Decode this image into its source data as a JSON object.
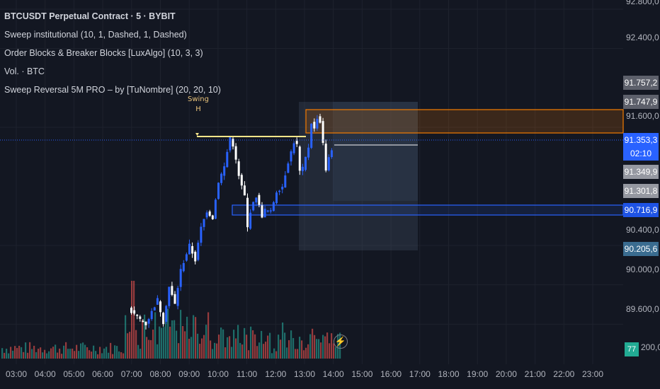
{
  "legend": {
    "title": "BTCUSDT Perpetual Contract · 5 · BYBIT",
    "indicators": [
      "Sweep institutional (10, 1, Dashed, 1, Dashed)",
      "Order Blocks & Breaker Blocks [LuxAlgo] (10, 3, 3)",
      "Vol. · BTC",
      "Sweep Reversal 5M PRO – by [TuNombre] (20, 20, 10)"
    ]
  },
  "swing_label": {
    "line1": "Swing",
    "line2": "H"
  },
  "price_axis": {
    "labels": [
      "92.800,0",
      "92.400,0",
      "91.600,0",
      "90.400,0",
      "90.000,0",
      "89.600,0",
      "200,0"
    ],
    "tags": {
      "ob_upper": "91.757,2",
      "ob_lower": "91.747,9",
      "last_price": "91.353,3",
      "countdown": "02:10",
      "tag_349": "91.349,9",
      "tag_301": "91.301,8",
      "blue_zone": "90.716,9",
      "bottom_tag": "90.205,6"
    },
    "volume_badge": "77"
  },
  "time_axis": [
    "03:00",
    "04:00",
    "05:00",
    "06:00",
    "07:00",
    "08:00",
    "09:00",
    "10:00",
    "11:00",
    "12:00",
    "13:00",
    "14:00",
    "15:00",
    "16:00",
    "17:00",
    "18:00",
    "19:00",
    "20:00",
    "21:00",
    "22:00",
    "23:00"
  ],
  "colors": {
    "background": "#131722",
    "bull": "#2962ff",
    "bear": "#ffffff",
    "vol_up": "#26a69a",
    "vol_down": "#ef5350",
    "orange": "#f57c00",
    "blue_zone": "#2962ff",
    "swing_line": "#f7e58a"
  },
  "icons": {
    "replay": "bolt-icon"
  },
  "chart_data": {
    "type": "candlestick",
    "symbol": "BTCUSDT Perpetual Contract",
    "interval": "5",
    "exchange": "BYBIT",
    "ylim": [
      89200,
      92800
    ],
    "y_ticks": [
      92800,
      92400,
      91600,
      90400,
      90000,
      89600
    ],
    "close_path": [
      [
        0,
        89750
      ],
      [
        6,
        89600
      ],
      [
        10,
        89850
      ],
      [
        12,
        89620
      ],
      [
        14,
        89980
      ],
      [
        16,
        89800
      ],
      [
        18,
        90150
      ],
      [
        21,
        90400
      ],
      [
        23,
        90250
      ],
      [
        25,
        90580
      ],
      [
        27,
        90750
      ],
      [
        29,
        90680
      ],
      [
        31,
        91050
      ],
      [
        33,
        91200
      ],
      [
        35,
        91500
      ],
      [
        36,
        91420
      ],
      [
        38,
        91100
      ],
      [
        40,
        90900
      ],
      [
        41,
        90580
      ],
      [
        42,
        90750
      ],
      [
        44,
        90900
      ],
      [
        45,
        90800
      ],
      [
        46,
        90700
      ],
      [
        47,
        90760
      ],
      [
        49,
        90740
      ],
      [
        51,
        90950
      ],
      [
        53,
        91000
      ],
      [
        55,
        91250
      ],
      [
        57,
        91450
      ],
      [
        58,
        91420
      ],
      [
        59,
        91150
      ],
      [
        60,
        91180
      ],
      [
        62,
        91400
      ],
      [
        63,
        91650
      ],
      [
        64,
        91580
      ],
      [
        65,
        91700
      ],
      [
        66,
        91650
      ],
      [
        67,
        91450
      ],
      [
        68,
        91150
      ],
      [
        69,
        91300
      ],
      [
        70,
        91380
      ]
    ],
    "zones": [
      {
        "label": "91.757,2",
        "kind": "order-block",
        "low": 91438,
        "high": 91757.2,
        "color": "#f57c00"
      },
      {
        "label": "90.716,9",
        "kind": "breaker-block",
        "low": 90620,
        "high": 90716.9,
        "color": "#2962ff"
      }
    ],
    "levels": {
      "swing_high": 91500,
      "last_price": 91353.3
    }
  }
}
